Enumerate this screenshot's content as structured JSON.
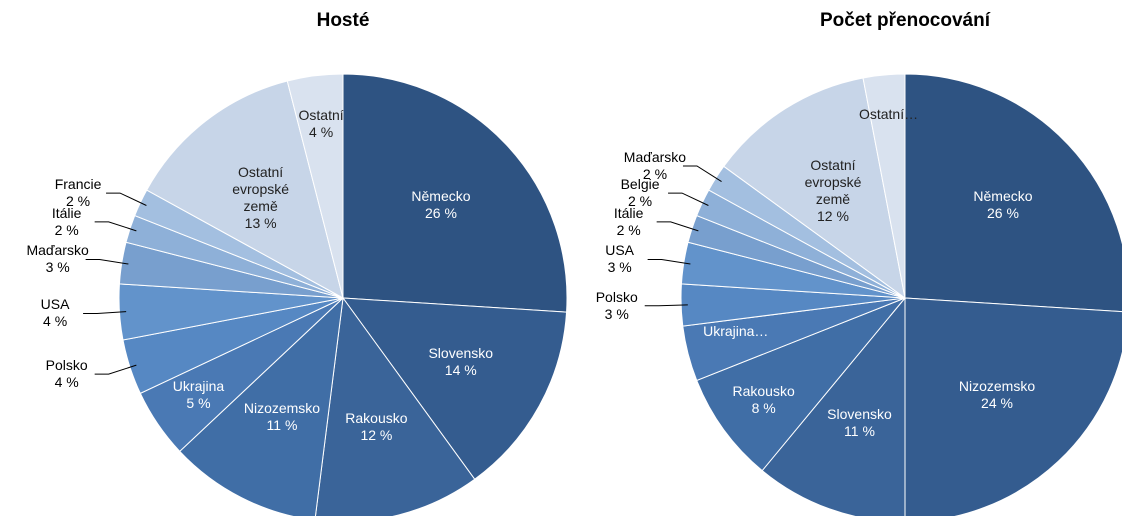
{
  "chart_data": [
    {
      "type": "pie",
      "title": "Hosté",
      "categories": [
        "Německo",
        "Slovensko",
        "Rakousko",
        "Nizozemsko",
        "Ukrajina",
        "Polsko",
        "USA",
        "Maďarsko",
        "Itálie",
        "Francie",
        "Ostatní evropské země",
        "Ostatní"
      ],
      "values": [
        26,
        14,
        12,
        11,
        5,
        4,
        4,
        3,
        2,
        2,
        13,
        4
      ],
      "value_labels": [
        "26 %",
        "14 %",
        "12 %",
        "11 %",
        "5 %",
        "4 %",
        "4 %",
        "3 %",
        "2 %",
        "2 %",
        "13 %",
        "4 %"
      ],
      "colors": [
        "#2e5382",
        "#345c8f",
        "#3a6499",
        "#406ea6",
        "#4a79b4",
        "#5688c3",
        "#6293cb",
        "#789fce",
        "#8eb0d8",
        "#a3bfe0",
        "#c7d5e8",
        "#d9e2ef"
      ]
    },
    {
      "type": "pie",
      "title": "Počet přenocování",
      "categories": [
        "Německo",
        "Nizozemsko",
        "Slovensko",
        "Rakousko",
        "Ukrajina…",
        "Polsko",
        "USA",
        "Itálie",
        "Belgie",
        "Maďarsko",
        "Ostatní evropské země",
        "Ostatní…"
      ],
      "values": [
        26,
        24,
        11,
        8,
        4,
        3,
        3,
        2,
        2,
        2,
        12,
        3
      ],
      "value_labels": [
        "26 %",
        "24 %",
        "11 %",
        "8 %",
        null,
        "3 %",
        "3 %",
        "2 %",
        "2 %",
        "2 %",
        "12 %",
        null
      ],
      "colors": [
        "#2e5382",
        "#345c8f",
        "#3a6499",
        "#406ea6",
        "#4a79b4",
        "#5688c3",
        "#6293cb",
        "#789fce",
        "#8eb0d8",
        "#a3bfe0",
        "#c7d5e8",
        "#d9e2ef"
      ]
    }
  ]
}
